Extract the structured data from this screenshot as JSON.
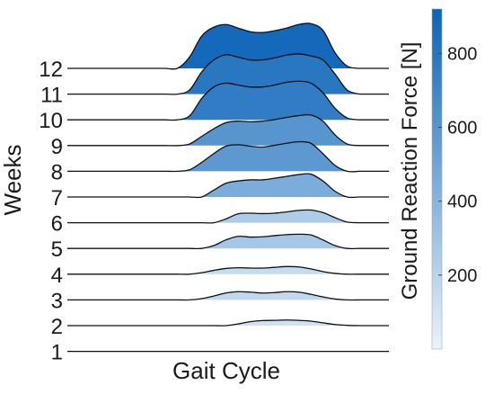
{
  "chart_data": {
    "type": "ridgeline",
    "xlabel": "Gait Cycle",
    "ylabel": "Weeks",
    "weeks": [
      "1",
      "2",
      "3",
      "4",
      "5",
      "6",
      "7",
      "8",
      "9",
      "10",
      "11",
      "12"
    ],
    "x": [
      0,
      5,
      10,
      15,
      20,
      25,
      30,
      35,
      40,
      45,
      50,
      55,
      60,
      65,
      70,
      75,
      80,
      85,
      90,
      95,
      100
    ],
    "series": [
      {
        "name": "1",
        "peak_force": 0,
        "values": [
          0,
          0,
          0,
          0,
          0,
          0,
          0,
          0,
          0,
          0,
          0,
          0,
          0,
          0,
          0,
          0,
          0,
          0,
          0,
          0,
          0
        ]
      },
      {
        "name": "2",
        "peak_force": 110,
        "values": [
          0,
          0,
          0,
          0,
          0,
          0,
          0,
          0,
          0,
          0,
          0.3,
          0.7,
          0.9,
          0.95,
          1.0,
          0.95,
          0.8,
          0.5,
          0.2,
          0.05,
          0
        ]
      },
      {
        "name": "3",
        "peak_force": 170,
        "values": [
          0,
          0,
          0,
          0,
          0,
          0,
          0,
          0.15,
          0.45,
          0.8,
          0.95,
          0.9,
          0.8,
          0.85,
          0.95,
          0.9,
          0.65,
          0.35,
          0.1,
          0,
          0
        ]
      },
      {
        "name": "4",
        "peak_force": 150,
        "values": [
          0,
          0,
          0,
          0,
          0,
          0,
          0,
          0.2,
          0.5,
          0.75,
          0.85,
          0.8,
          0.8,
          0.9,
          1.0,
          0.95,
          0.7,
          0.35,
          0.1,
          0,
          0
        ]
      },
      {
        "name": "5",
        "peak_force": 280,
        "values": [
          0,
          0,
          0,
          0,
          0,
          0,
          0,
          0,
          0.2,
          0.6,
          0.85,
          0.8,
          0.82,
          0.9,
          0.97,
          1.0,
          0.95,
          0.6,
          0.2,
          0,
          0
        ]
      },
      {
        "name": "6",
        "peak_force": 250,
        "values": [
          0,
          0,
          0,
          0,
          0,
          0,
          0,
          0,
          0,
          0.3,
          0.7,
          0.75,
          0.72,
          0.75,
          0.85,
          0.97,
          1.0,
          0.8,
          0.4,
          0.05,
          0
        ]
      },
      {
        "name": "7",
        "peak_force": 450,
        "values": [
          0,
          0,
          0,
          0,
          0,
          0,
          0,
          0,
          0.3,
          0.6,
          0.7,
          0.75,
          0.75,
          0.82,
          0.9,
          0.98,
          1.0,
          0.7,
          0.25,
          0,
          0
        ]
      },
      {
        "name": "8",
        "peak_force": 580,
        "values": [
          0,
          0,
          0,
          0,
          0,
          0,
          0.05,
          0.3,
          0.6,
          0.85,
          0.9,
          0.85,
          0.82,
          0.88,
          0.95,
          1.0,
          0.95,
          0.6,
          0.2,
          0,
          0
        ]
      },
      {
        "name": "9",
        "peak_force": 600,
        "values": [
          0,
          0,
          0,
          0,
          0,
          0,
          0.05,
          0.3,
          0.55,
          0.75,
          0.8,
          0.78,
          0.8,
          0.85,
          0.92,
          0.98,
          1.0,
          0.8,
          0.35,
          0.05,
          0
        ]
      },
      {
        "name": "10",
        "peak_force": 760,
        "values": [
          0,
          0,
          0,
          0,
          0,
          0,
          0.1,
          0.55,
          0.85,
          0.95,
          0.9,
          0.85,
          0.85,
          0.9,
          0.97,
          1.0,
          0.95,
          0.7,
          0.3,
          0.05,
          0
        ]
      },
      {
        "name": "11",
        "peak_force": 790,
        "values": [
          0,
          0,
          0,
          0,
          0,
          0,
          0.1,
          0.55,
          0.85,
          0.98,
          0.92,
          0.85,
          0.85,
          0.9,
          0.97,
          1.0,
          0.95,
          0.85,
          0.5,
          0.1,
          0
        ]
      },
      {
        "name": "12",
        "peak_force": 880,
        "values": [
          0,
          0,
          0,
          0,
          0,
          0,
          0.25,
          0.72,
          0.92,
          0.98,
          0.9,
          0.82,
          0.8,
          0.84,
          0.9,
          0.98,
          1.0,
          0.85,
          0.35,
          0.05,
          0
        ]
      }
    ],
    "colorbar": {
      "label": "Ground Reaction Force [N]",
      "range": [
        0,
        920
      ],
      "ticks": [
        200,
        400,
        600,
        800
      ],
      "tick_labels": [
        "200",
        "400",
        "600",
        "800"
      ],
      "color_low": "#eaf3fb",
      "color_high": "#0a63b8"
    },
    "grid": false,
    "legend": "none"
  }
}
